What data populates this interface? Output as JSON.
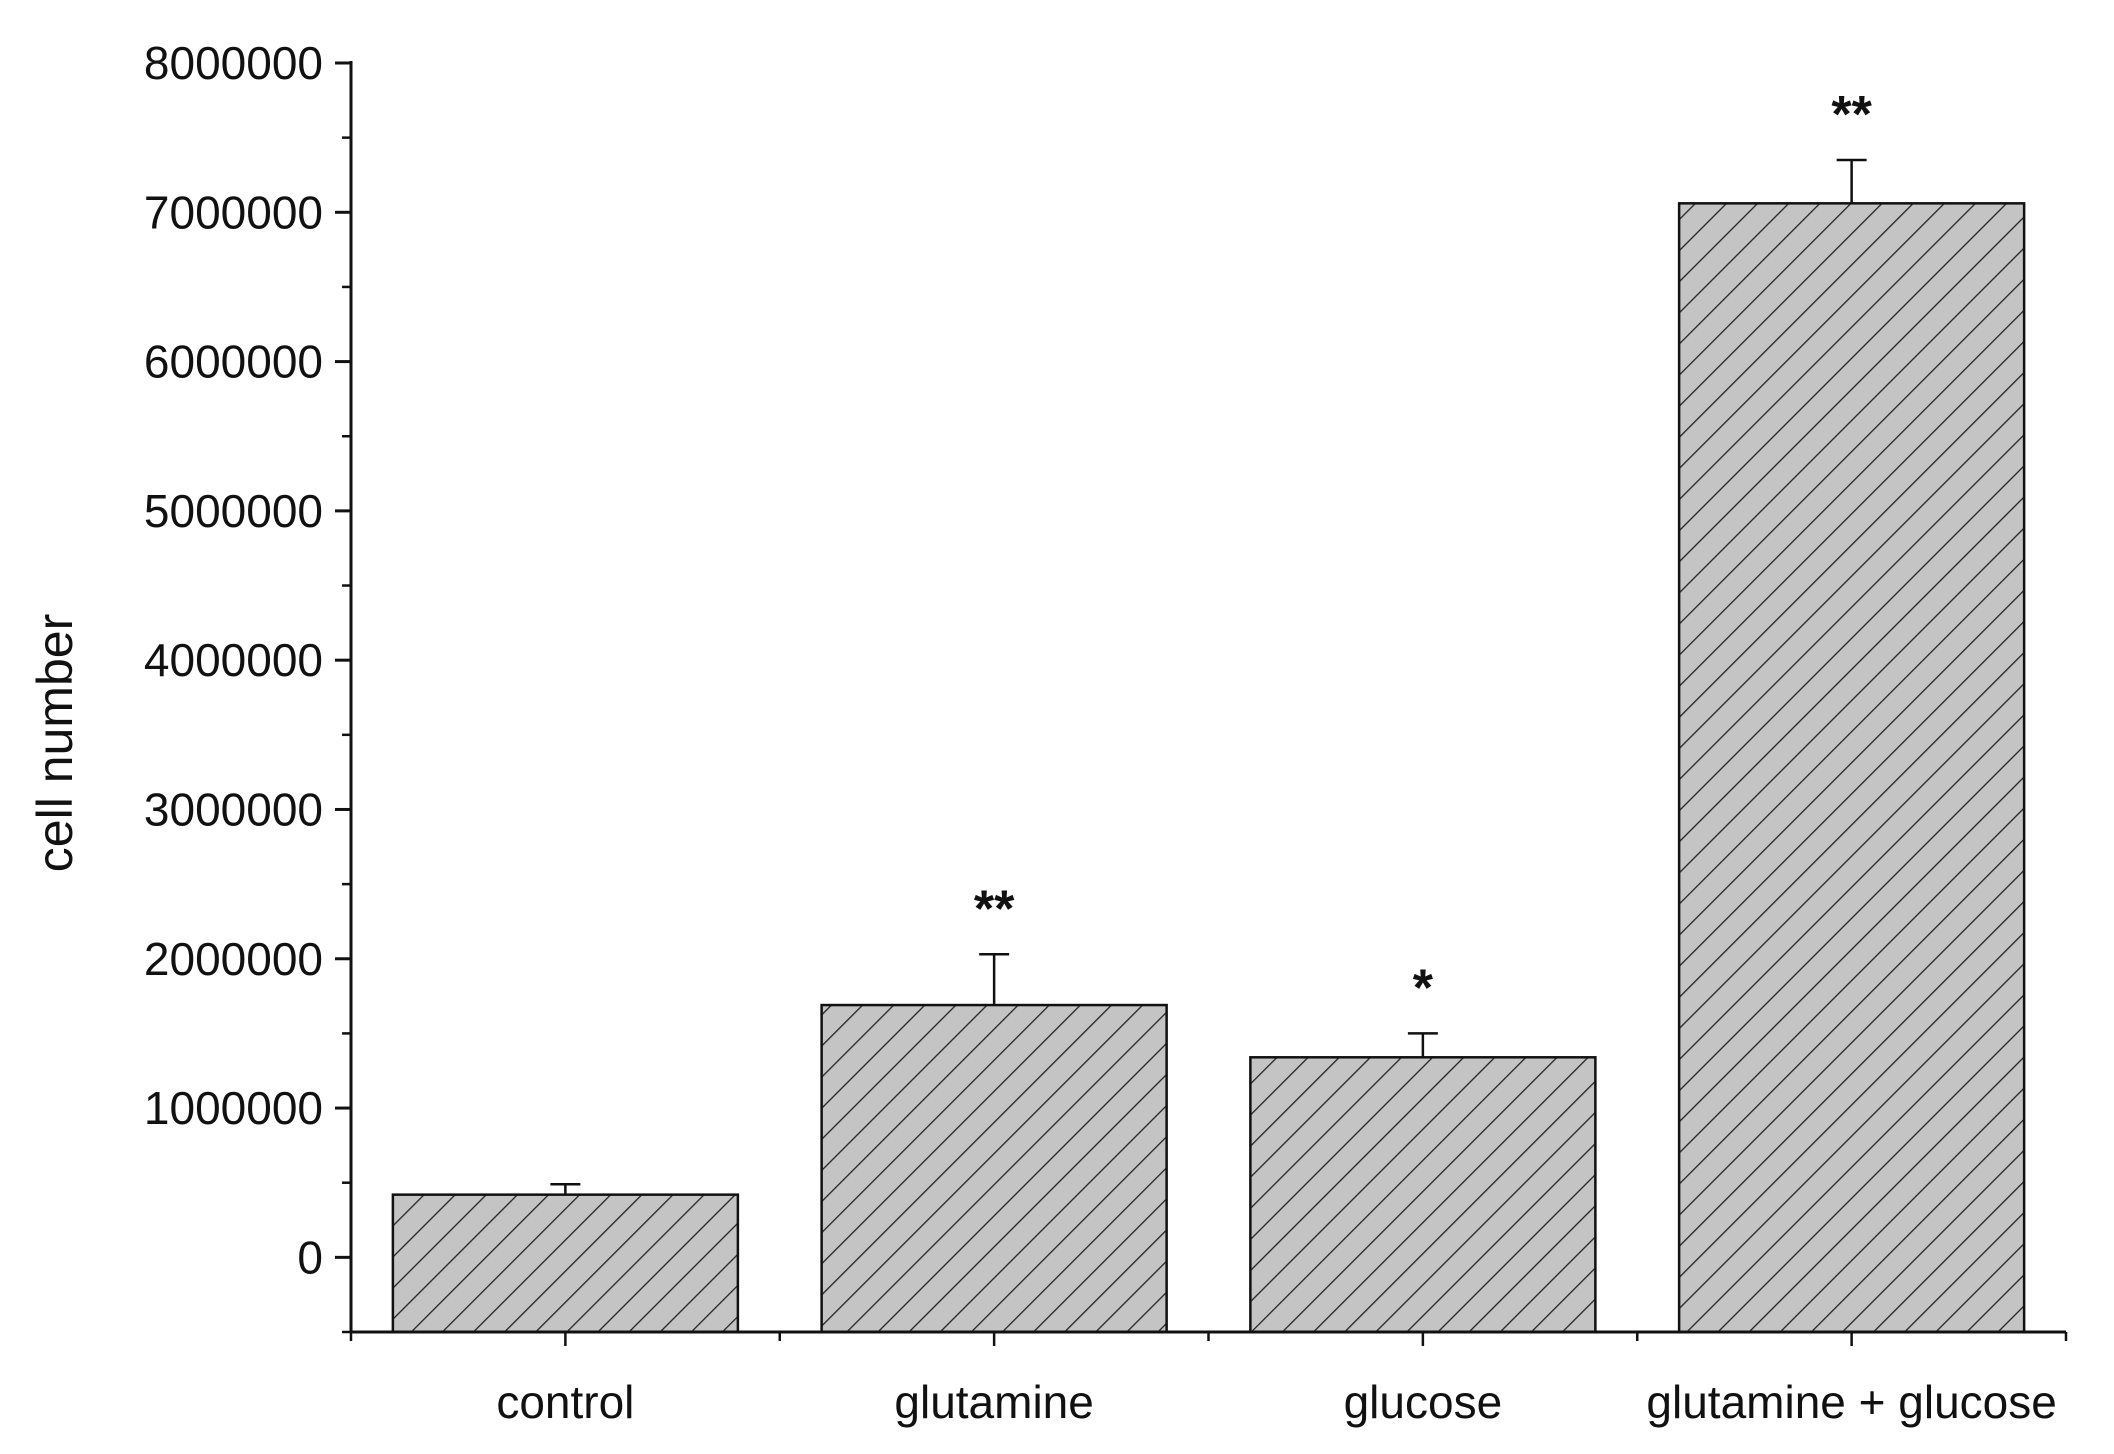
{
  "chart_data": {
    "type": "bar",
    "title": "",
    "xlabel": "",
    "ylabel": "cell number",
    "ylim": [
      -500000,
      8000000
    ],
    "yticks": [
      0,
      1000000,
      2000000,
      3000000,
      4000000,
      5000000,
      6000000,
      7000000,
      8000000
    ],
    "ytick_labels": [
      "0",
      "1000000",
      "2000000",
      "3000000",
      "4000000",
      "5000000",
      "6000000",
      "7000000",
      "8000000"
    ],
    "categories": [
      "control",
      "glutamine",
      "glucose",
      "glutamine +  glucose"
    ],
    "values": [
      420000,
      1690000,
      1340000,
      7060000
    ],
    "errors": [
      70000,
      340000,
      160000,
      290000
    ],
    "annotations": [
      "",
      "**",
      "*",
      "**"
    ],
    "grid": false,
    "legend": "none",
    "colors": {
      "bar_fill": "#c4c4c4",
      "hatch": "#222222",
      "edge": "#111111"
    }
  }
}
